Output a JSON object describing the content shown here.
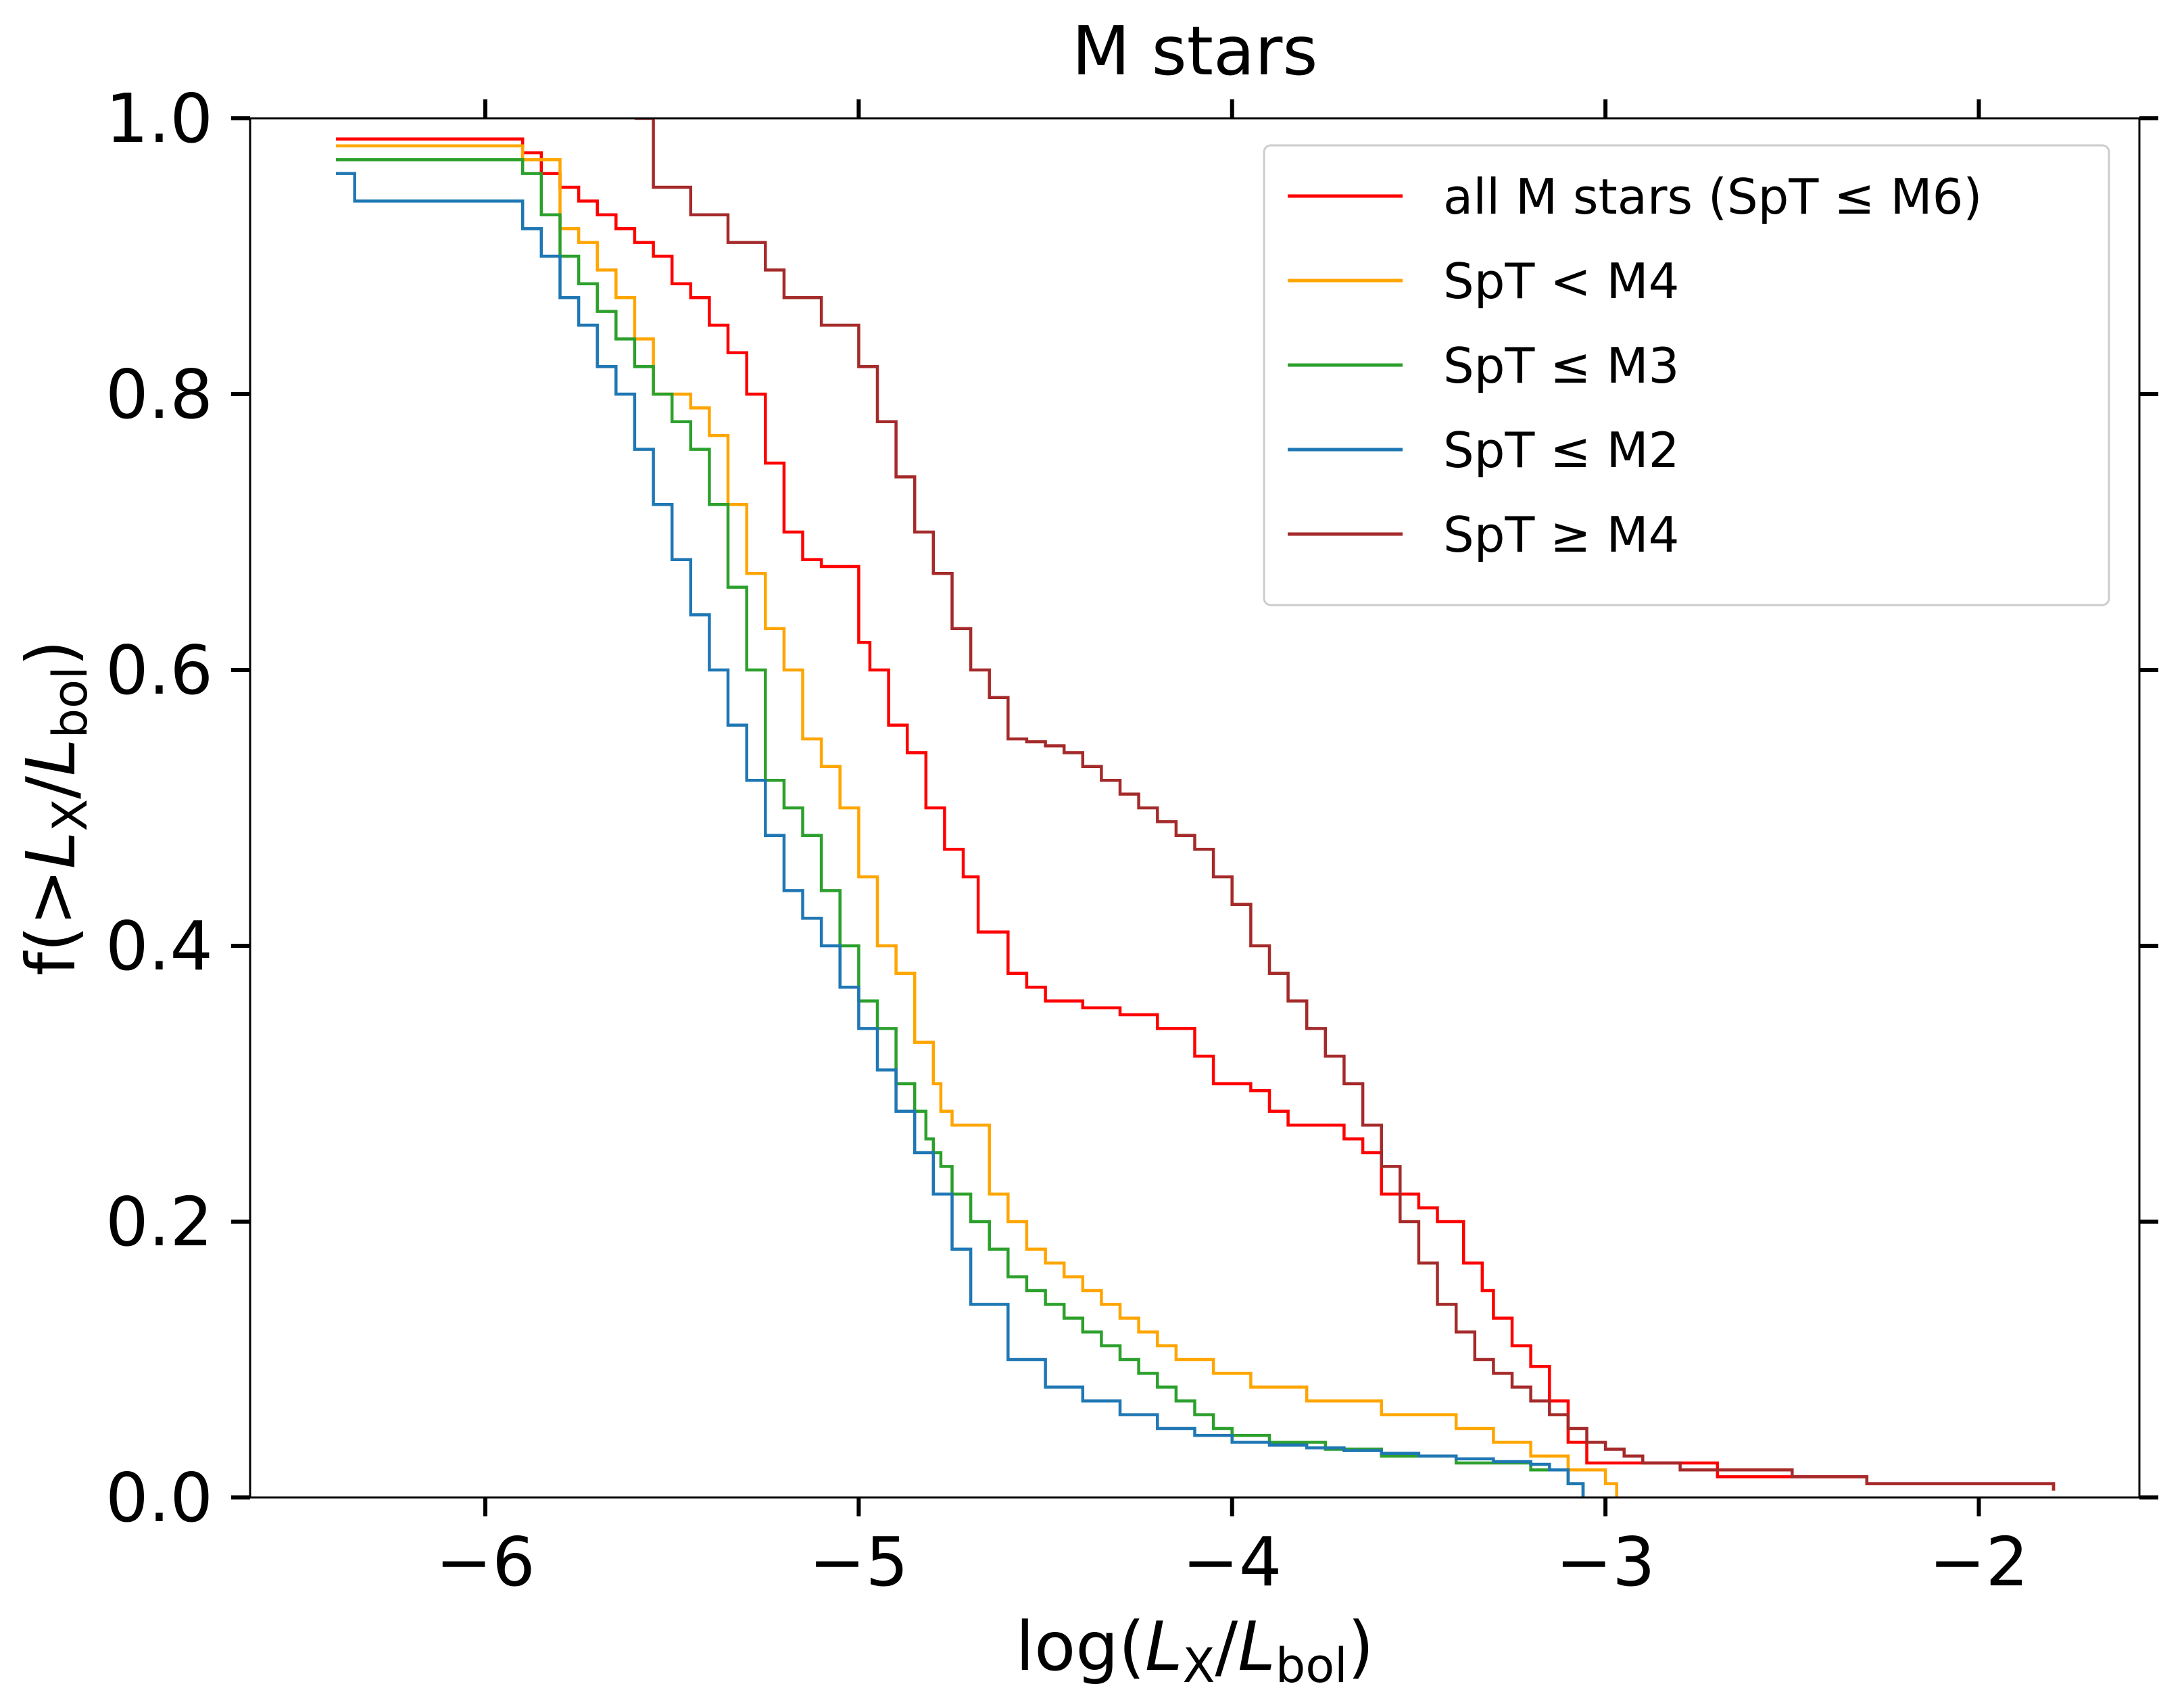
{
  "chart_data": {
    "type": "line",
    "step": "post",
    "title": "M stars",
    "xlabel": {
      "prefix": "log(",
      "L": "L",
      "sub1": "X",
      "slash": "/",
      "sub2": "bol",
      "suffix": ")"
    },
    "ylabel": {
      "prefix": "f(>",
      "L": "L",
      "sub1": "X",
      "slash": "/",
      "sub2": "bol",
      "suffix": ")"
    },
    "xlim": [
      -6.63,
      -1.57
    ],
    "ylim": [
      0.0,
      1.0
    ],
    "xticks": [
      -6,
      -5,
      -4,
      -3,
      -2
    ],
    "xtick_labels": [
      "−6",
      "−5",
      "−4",
      "−3",
      "−2"
    ],
    "yticks": [
      0.0,
      0.2,
      0.4,
      0.6,
      0.8,
      1.0
    ],
    "ytick_labels": [
      "0.0",
      "0.2",
      "0.4",
      "0.6",
      "0.8",
      "1.0"
    ],
    "legend_position": "top-right",
    "series": [
      {
        "name": "all M stars (SpT ≤ M6)",
        "color": "#ff0000",
        "x": [
          -6.4,
          -5.9,
          -5.85,
          -5.8,
          -5.75,
          -5.7,
          -5.65,
          -5.6,
          -5.55,
          -5.5,
          -5.45,
          -5.4,
          -5.35,
          -5.3,
          -5.25,
          -5.2,
          -5.15,
          -5.1,
          -5.0,
          -4.97,
          -4.92,
          -4.87,
          -4.82,
          -4.77,
          -4.72,
          -4.68,
          -4.6,
          -4.55,
          -4.5,
          -4.4,
          -4.3,
          -4.2,
          -4.1,
          -4.05,
          -3.95,
          -3.9,
          -3.85,
          -3.7,
          -3.65,
          -3.6,
          -3.5,
          -3.45,
          -3.38,
          -3.33,
          -3.3,
          -3.25,
          -3.2,
          -3.15,
          -3.1,
          -3.05,
          -2.7,
          -2.3,
          -1.8
        ],
        "y": [
          0.985,
          0.975,
          0.96,
          0.95,
          0.94,
          0.93,
          0.92,
          0.91,
          0.9,
          0.88,
          0.87,
          0.85,
          0.83,
          0.8,
          0.75,
          0.7,
          0.68,
          0.675,
          0.62,
          0.6,
          0.56,
          0.54,
          0.5,
          0.47,
          0.45,
          0.41,
          0.38,
          0.37,
          0.36,
          0.355,
          0.35,
          0.34,
          0.32,
          0.3,
          0.295,
          0.28,
          0.27,
          0.26,
          0.25,
          0.22,
          0.21,
          0.2,
          0.17,
          0.15,
          0.13,
          0.11,
          0.095,
          0.07,
          0.04,
          0.025,
          0.015,
          0.01,
          0.005
        ]
      },
      {
        "name": "SpT < M4",
        "color": "#ffa500",
        "x": [
          -6.4,
          -5.9,
          -5.8,
          -5.75,
          -5.7,
          -5.65,
          -5.6,
          -5.55,
          -5.45,
          -5.4,
          -5.35,
          -5.3,
          -5.25,
          -5.2,
          -5.15,
          -5.1,
          -5.05,
          -5.0,
          -4.95,
          -4.9,
          -4.85,
          -4.8,
          -4.78,
          -4.75,
          -4.65,
          -4.6,
          -4.55,
          -4.5,
          -4.45,
          -4.4,
          -4.35,
          -4.3,
          -4.25,
          -4.2,
          -4.15,
          -4.05,
          -3.95,
          -3.8,
          -3.6,
          -3.4,
          -3.3,
          -3.2,
          -3.1,
          -3.0,
          -2.97
        ],
        "y": [
          0.98,
          0.97,
          0.92,
          0.91,
          0.89,
          0.87,
          0.84,
          0.8,
          0.79,
          0.77,
          0.72,
          0.67,
          0.63,
          0.6,
          0.55,
          0.53,
          0.5,
          0.45,
          0.4,
          0.38,
          0.33,
          0.3,
          0.28,
          0.27,
          0.22,
          0.2,
          0.18,
          0.17,
          0.16,
          0.15,
          0.14,
          0.13,
          0.12,
          0.11,
          0.1,
          0.09,
          0.08,
          0.07,
          0.06,
          0.05,
          0.04,
          0.03,
          0.02,
          0.01,
          0.0
        ]
      },
      {
        "name": "SpT ≤ M3",
        "color": "#2ca02c",
        "x": [
          -6.4,
          -5.9,
          -5.85,
          -5.8,
          -5.75,
          -5.7,
          -5.65,
          -5.6,
          -5.55,
          -5.5,
          -5.45,
          -5.4,
          -5.35,
          -5.3,
          -5.25,
          -5.2,
          -5.15,
          -5.1,
          -5.05,
          -5.0,
          -4.95,
          -4.9,
          -4.85,
          -4.82,
          -4.8,
          -4.78,
          -4.75,
          -4.7,
          -4.65,
          -4.6,
          -4.55,
          -4.5,
          -4.45,
          -4.4,
          -4.35,
          -4.3,
          -4.25,
          -4.2,
          -4.15,
          -4.1,
          -4.05,
          -4.0,
          -3.9,
          -3.75,
          -3.6,
          -3.4,
          -3.2,
          -3.1,
          -3.06
        ],
        "y": [
          0.97,
          0.96,
          0.93,
          0.9,
          0.88,
          0.86,
          0.84,
          0.82,
          0.8,
          0.78,
          0.76,
          0.72,
          0.66,
          0.6,
          0.52,
          0.5,
          0.48,
          0.44,
          0.4,
          0.36,
          0.34,
          0.3,
          0.28,
          0.26,
          0.25,
          0.24,
          0.22,
          0.2,
          0.18,
          0.16,
          0.15,
          0.14,
          0.13,
          0.12,
          0.11,
          0.1,
          0.09,
          0.08,
          0.07,
          0.06,
          0.05,
          0.045,
          0.04,
          0.035,
          0.03,
          0.025,
          0.02,
          0.01,
          0.0
        ]
      },
      {
        "name": "SpT ≤ M2",
        "color": "#1f77b4",
        "x": [
          -6.4,
          -6.35,
          -5.9,
          -5.85,
          -5.8,
          -5.75,
          -5.7,
          -5.65,
          -5.6,
          -5.55,
          -5.5,
          -5.45,
          -5.4,
          -5.35,
          -5.3,
          -5.25,
          -5.2,
          -5.15,
          -5.1,
          -5.05,
          -5.0,
          -4.95,
          -4.9,
          -4.85,
          -4.8,
          -4.75,
          -4.7,
          -4.6,
          -4.5,
          -4.4,
          -4.3,
          -4.2,
          -4.1,
          -4.0,
          -3.9,
          -3.8,
          -3.7,
          -3.6,
          -3.5,
          -3.4,
          -3.3,
          -3.2,
          -3.15,
          -3.1,
          -3.06
        ],
        "y": [
          0.96,
          0.94,
          0.92,
          0.9,
          0.87,
          0.85,
          0.82,
          0.8,
          0.76,
          0.72,
          0.68,
          0.64,
          0.6,
          0.56,
          0.52,
          0.48,
          0.44,
          0.42,
          0.4,
          0.37,
          0.34,
          0.31,
          0.28,
          0.25,
          0.22,
          0.18,
          0.14,
          0.1,
          0.08,
          0.07,
          0.06,
          0.05,
          0.045,
          0.04,
          0.038,
          0.036,
          0.034,
          0.032,
          0.03,
          0.028,
          0.026,
          0.024,
          0.02,
          0.01,
          0.0
        ]
      },
      {
        "name": "SpT ≥ M4",
        "color": "#a52a2a",
        "x": [
          -5.6,
          -5.55,
          -5.45,
          -5.35,
          -5.25,
          -5.2,
          -5.1,
          -5.0,
          -4.95,
          -4.9,
          -4.85,
          -4.8,
          -4.75,
          -4.7,
          -4.65,
          -4.6,
          -4.55,
          -4.5,
          -4.45,
          -4.4,
          -4.35,
          -4.3,
          -4.25,
          -4.2,
          -4.15,
          -4.1,
          -4.05,
          -4.0,
          -3.95,
          -3.9,
          -3.85,
          -3.8,
          -3.75,
          -3.7,
          -3.65,
          -3.6,
          -3.55,
          -3.5,
          -3.45,
          -3.4,
          -3.35,
          -3.3,
          -3.25,
          -3.2,
          -3.15,
          -3.1,
          -3.05,
          -3.0,
          -2.95,
          -2.9,
          -2.8,
          -2.7,
          -2.5,
          -2.3,
          -1.8
        ],
        "y": [
          1.0,
          0.95,
          0.93,
          0.91,
          0.89,
          0.87,
          0.85,
          0.82,
          0.78,
          0.74,
          0.7,
          0.67,
          0.63,
          0.6,
          0.58,
          0.55,
          0.548,
          0.545,
          0.54,
          0.53,
          0.52,
          0.51,
          0.5,
          0.49,
          0.48,
          0.47,
          0.45,
          0.43,
          0.4,
          0.38,
          0.36,
          0.34,
          0.32,
          0.3,
          0.27,
          0.24,
          0.2,
          0.17,
          0.14,
          0.12,
          0.1,
          0.09,
          0.08,
          0.07,
          0.06,
          0.05,
          0.04,
          0.035,
          0.03,
          0.025,
          0.02,
          0.02,
          0.015,
          0.01,
          0.005
        ]
      }
    ]
  }
}
